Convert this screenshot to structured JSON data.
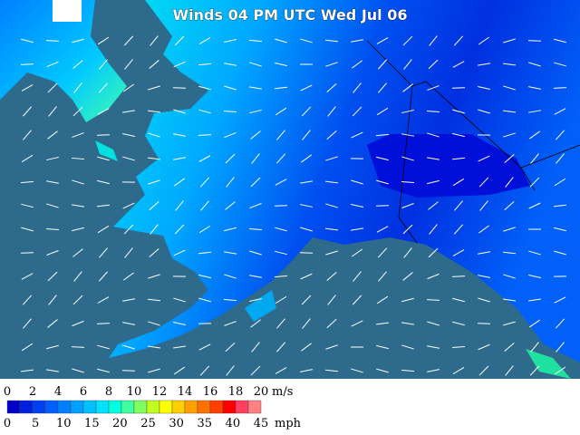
{
  "header": {
    "title": "Winds 04 PM UTC Wed Jul 06"
  },
  "legend": {
    "ms_ticks": [
      0,
      2,
      4,
      6,
      8,
      10,
      12,
      14,
      16,
      18,
      20
    ],
    "ms_unit": "m/s",
    "mph_ticks": [
      0,
      5,
      10,
      15,
      20,
      25,
      30,
      35,
      40,
      45
    ],
    "mph_unit": "mph",
    "colors": [
      "#0000c8",
      "#0020e0",
      "#0040f0",
      "#0060ff",
      "#0080ff",
      "#00a0ff",
      "#00c0ff",
      "#00e0ff",
      "#00ffe0",
      "#40ffa0",
      "#80ff60",
      "#c0ff20",
      "#ffff00",
      "#ffd000",
      "#ffa000",
      "#ff7000",
      "#ff4000",
      "#ff0000",
      "#ff4060",
      "#ff8080"
    ]
  }
}
